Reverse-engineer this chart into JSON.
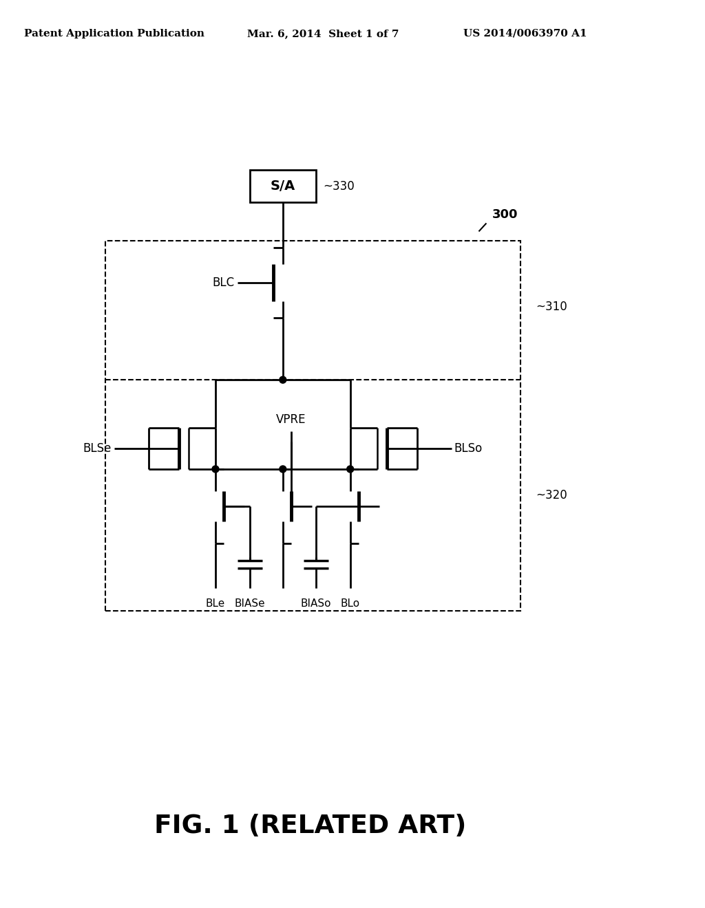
{
  "header_left": "Patent Application Publication",
  "header_mid": "Mar. 6, 2014  Sheet 1 of 7",
  "header_right": "US 2014/0063970 A1",
  "caption": "FIG. 1 (RELATED ART)",
  "label_SA": "S/A",
  "label_330": "~330",
  "label_300": "300",
  "label_310": "~310",
  "label_320": "~320",
  "label_BLC": "BLC",
  "label_BLSe": "BLSe",
  "label_BLSo": "BLSo",
  "label_VPRE": "VPRE",
  "label_BLe": "BLe",
  "label_BIASe": "BIASe",
  "label_BIASo": "BIASo",
  "label_BLo": "BLo"
}
